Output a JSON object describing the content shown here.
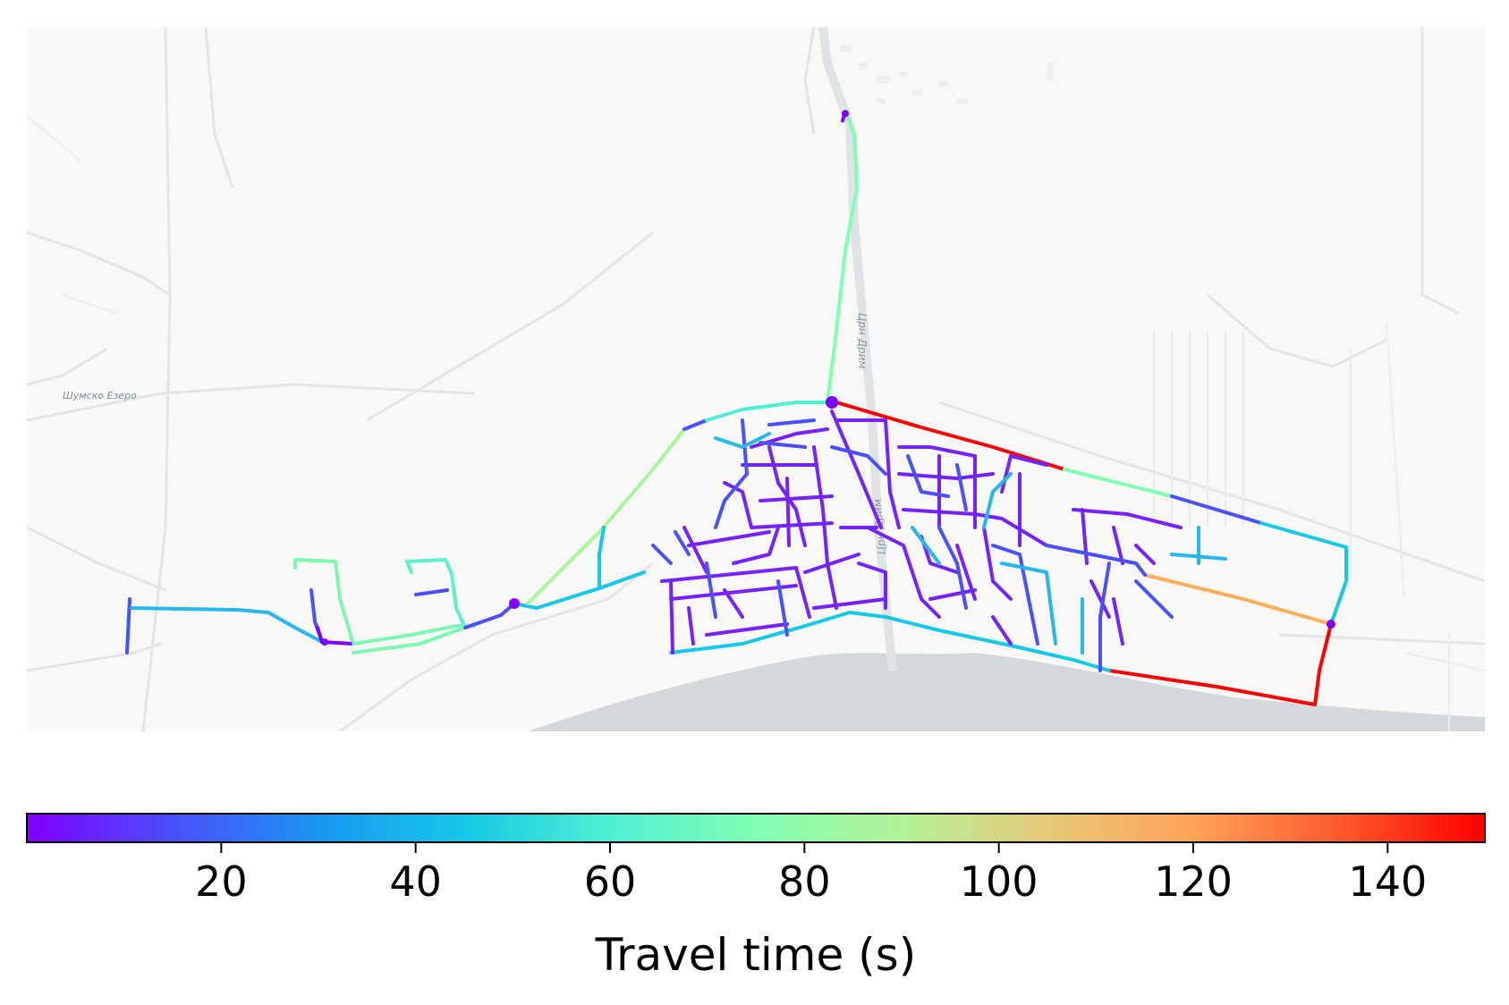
{
  "map": {
    "place_labels": [
      {
        "text": "Шумско Езеро"
      },
      {
        "text": "Црн Дрим"
      },
      {
        "text": "Црн Дрим"
      }
    ]
  },
  "colorbar": {
    "label": "Travel time (s)",
    "colormap": "rainbow",
    "range": [
      0,
      150
    ],
    "ticks": [
      20,
      40,
      60,
      80,
      100,
      120,
      140
    ],
    "stops": [
      "#7f00ff",
      "#4b4ffc",
      "#1996f3",
      "#15c8e6",
      "#4ef0d3",
      "#80feb3",
      "#b3f296",
      "#e6c97a",
      "#ffa256",
      "#ff5a2c",
      "#ff0000"
    ]
  },
  "edges_summary": {
    "highest_values": [
      {
        "description": "north-east boundary road",
        "value": 148
      },
      {
        "description": "south-east shore road",
        "value": 148
      },
      {
        "description": "east diagonal road",
        "value": 115
      }
    ]
  }
}
